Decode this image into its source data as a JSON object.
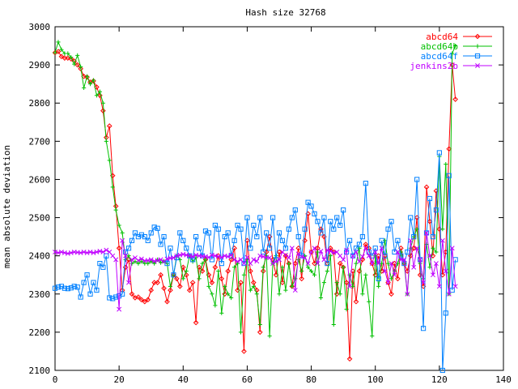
{
  "chart_data": {
    "type": "line",
    "title": "Hash size 32768",
    "xlabel": "",
    "ylabel": "mean absolute deviation",
    "xlim": [
      0,
      140
    ],
    "ylim": [
      2100,
      3000
    ],
    "x_ticks": [
      "0",
      "20",
      "40",
      "60",
      "80",
      "100",
      "120",
      "140"
    ],
    "y_ticks": [
      "2100",
      "2200",
      "2300",
      "2400",
      "2500",
      "2600",
      "2700",
      "2800",
      "2900",
      "3000"
    ],
    "grid": false,
    "legend_position": "top-right",
    "x": [
      0,
      1,
      2,
      3,
      4,
      5,
      6,
      7,
      8,
      9,
      10,
      11,
      12,
      13,
      14,
      15,
      16,
      17,
      18,
      19,
      20,
      21,
      22,
      23,
      24,
      25,
      26,
      27,
      28,
      29,
      30,
      31,
      32,
      33,
      34,
      35,
      36,
      37,
      38,
      39,
      40,
      41,
      42,
      43,
      44,
      45,
      46,
      47,
      48,
      49,
      50,
      51,
      52,
      53,
      54,
      55,
      56,
      57,
      58,
      59,
      60,
      61,
      62,
      63,
      64,
      65,
      66,
      67,
      68,
      69,
      70,
      71,
      72,
      73,
      74,
      75,
      76,
      77,
      78,
      79,
      80,
      81,
      82,
      83,
      84,
      85,
      86,
      87,
      88,
      89,
      90,
      91,
      92,
      93,
      94,
      95,
      96,
      97,
      98,
      99,
      100,
      101,
      102,
      103,
      104,
      105,
      106,
      107,
      108,
      109,
      110,
      111,
      112,
      113,
      114,
      115,
      116,
      117,
      118,
      119,
      120,
      121,
      122,
      123,
      124,
      125
    ],
    "series": [
      {
        "name": "abcd64",
        "color": "#ff0000",
        "marker": "diamond",
        "values": [
          2932,
          2935,
          2922,
          2918,
          2918,
          2916,
          2910,
          2900,
          2890,
          2870,
          2868,
          2855,
          2858,
          2842,
          2820,
          2780,
          2710,
          2740,
          2610,
          2530,
          2420,
          2310,
          2370,
          2390,
          2300,
          2290,
          2292,
          2285,
          2280,
          2285,
          2310,
          2330,
          2330,
          2350,
          2315,
          2280,
          2310,
          2350,
          2340,
          2320,
          2370,
          2350,
          2310,
          2330,
          2225,
          2370,
          2360,
          2390,
          2350,
          2330,
          2370,
          2400,
          2340,
          2300,
          2360,
          2390,
          2420,
          2310,
          2330,
          2150,
          2440,
          2360,
          2330,
          2310,
          2200,
          2360,
          2410,
          2450,
          2390,
          2350,
          2410,
          2330,
          2400,
          2380,
          2320,
          2380,
          2420,
          2340,
          2440,
          2510,
          2410,
          2380,
          2420,
          2470,
          2450,
          2380,
          2420,
          2410,
          2300,
          2380,
          2370,
          2330,
          2130,
          2360,
          2280,
          2360,
          2390,
          2430,
          2420,
          2380,
          2350,
          2400,
          2360,
          2400,
          2330,
          2300,
          2380,
          2340,
          2420,
          2380,
          2360,
          2400,
          2420,
          2500,
          2350,
          2320,
          2580,
          2490,
          2400,
          2570,
          2470,
          2350,
          2410,
          2680,
          2900,
          2810
        ]
      },
      {
        "name": "abcd64b",
        "color": "#00c000",
        "marker": "plus",
        "values": [
          2932,
          2960,
          2940,
          2930,
          2930,
          2920,
          2902,
          2925,
          2895,
          2840,
          2870,
          2850,
          2860,
          2820,
          2830,
          2800,
          2700,
          2650,
          2580,
          2520,
          2480,
          2460,
          2390,
          2400,
          2380,
          2385,
          2380,
          2385,
          2380,
          2380,
          2385,
          2380,
          2390,
          2382,
          2386,
          2380,
          2320,
          2350,
          2400,
          2390,
          2340,
          2360,
          2400,
          2385,
          2395,
          2340,
          2380,
          2390,
          2320,
          2300,
          2270,
          2360,
          2250,
          2320,
          2300,
          2290,
          2370,
          2380,
          2200,
          2350,
          2390,
          2310,
          2320,
          2300,
          2220,
          2370,
          2400,
          2190,
          2380,
          2400,
          2300,
          2370,
          2310,
          2380,
          2320,
          2340,
          2390,
          2360,
          2400,
          2370,
          2360,
          2350,
          2410,
          2290,
          2330,
          2360,
          2400,
          2220,
          2330,
          2300,
          2370,
          2260,
          2350,
          2320,
          2380,
          2420,
          2300,
          2350,
          2280,
          2190,
          2400,
          2320,
          2380,
          2440,
          2380,
          2340,
          2360,
          2380,
          2410,
          2380,
          2300,
          2420,
          2450,
          2470,
          2380,
          2340,
          2430,
          2370,
          2420,
          2410,
          2660,
          2470,
          2640,
          2300,
          2930,
          2950
        ]
      },
      {
        "name": "abcd64f",
        "color": "#0080ff",
        "marker": "square",
        "values": [
          2315,
          2318,
          2320,
          2315,
          2314,
          2316,
          2320,
          2318,
          2292,
          2330,
          2350,
          2300,
          2330,
          2310,
          2380,
          2370,
          2400,
          2290,
          2288,
          2292,
          2295,
          2300,
          2410,
          2420,
          2440,
          2460,
          2450,
          2455,
          2450,
          2440,
          2460,
          2475,
          2472,
          2430,
          2450,
          2380,
          2420,
          2350,
          2395,
          2460,
          2440,
          2420,
          2400,
          2390,
          2450,
          2420,
          2400,
          2465,
          2460,
          2390,
          2480,
          2470,
          2380,
          2450,
          2460,
          2400,
          2440,
          2480,
          2470,
          2380,
          2500,
          2420,
          2480,
          2450,
          2500,
          2410,
          2460,
          2420,
          2500,
          2390,
          2460,
          2440,
          2420,
          2470,
          2500,
          2520,
          2450,
          2400,
          2470,
          2540,
          2530,
          2510,
          2490,
          2460,
          2500,
          2380,
          2490,
          2470,
          2500,
          2480,
          2520,
          2410,
          2440,
          2400,
          2420,
          2430,
          2450,
          2590,
          2410,
          2400,
          2420,
          2340,
          2440,
          2400,
          2470,
          2490,
          2410,
          2440,
          2400,
          2380,
          2410,
          2500,
          2450,
          2600,
          2390,
          2210,
          2460,
          2550,
          2450,
          2520,
          2670,
          2100,
          2250,
          2610,
          2310,
          2390
        ]
      },
      {
        "name": "jenkins2b",
        "color": "#c000ff",
        "marker": "x",
        "values": [
          2410,
          2408,
          2410,
          2408,
          2406,
          2408,
          2410,
          2409,
          2408,
          2410,
          2408,
          2410,
          2408,
          2410,
          2412,
          2410,
          2415,
          2410,
          2400,
          2390,
          2260,
          2440,
          2400,
          2330,
          2390,
          2395,
          2388,
          2392,
          2387,
          2388,
          2390,
          2386,
          2388,
          2390,
          2385,
          2392,
          2394,
          2395,
          2400,
          2402,
          2404,
          2402,
          2400,
          2398,
          2402,
          2400,
          2399,
          2398,
          2396,
          2402,
          2400,
          2398,
          2396,
          2400,
          2398,
          2402,
          2390,
          2385,
          2390,
          2380,
          2396,
          2380,
          2390,
          2386,
          2400,
          2398,
          2396,
          2395,
          2380,
          2385,
          2390,
          2410,
          2402,
          2395,
          2420,
          2310,
          2405,
          2398,
          2395,
          2380,
          2410,
          2420,
          2380,
          2412,
          2390,
          2415,
          2412,
          2408,
          2410,
          2400,
          2390,
          2415,
          2320,
          2400,
          2410,
          2385,
          2398,
          2420,
          2400,
          2380,
          2410,
          2380,
          2420,
          2360,
          2330,
          2380,
          2350,
          2410,
          2390,
          2390,
          2300,
          2440,
          2370,
          2420,
          2390,
          2330,
          2460,
          2400,
          2350,
          2380,
          2320,
          2440,
          2360,
          2300,
          2420,
          2320
        ]
      }
    ]
  }
}
